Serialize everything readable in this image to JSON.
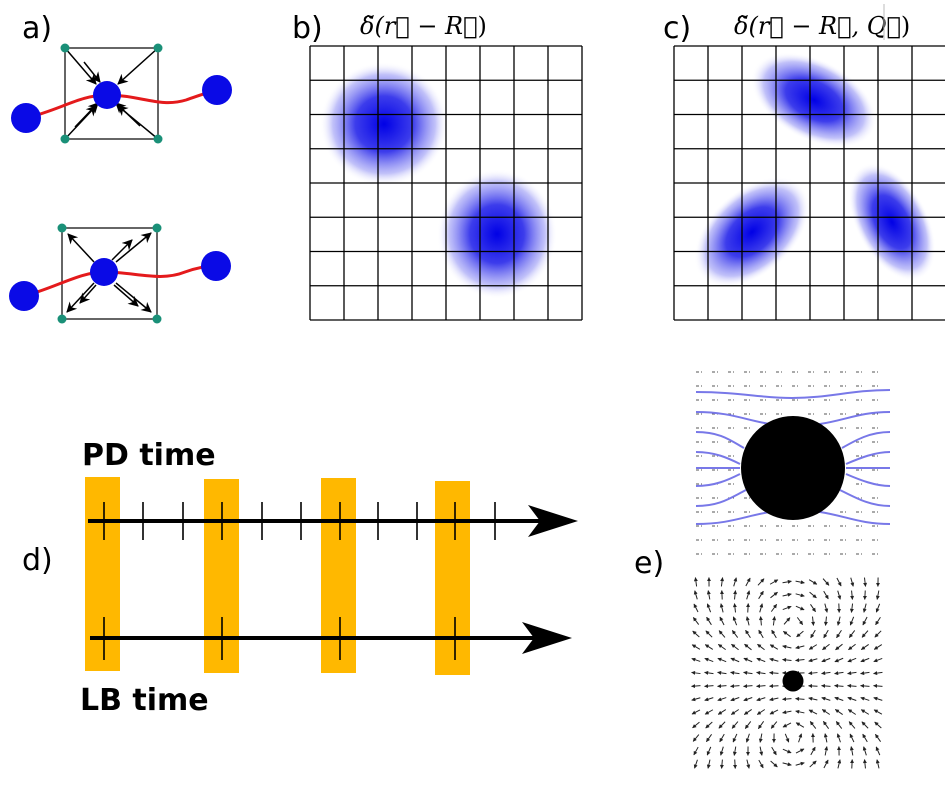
{
  "panels": {
    "a": {
      "label": "a)"
    },
    "b": {
      "label": "b)",
      "formula_main": "δ̃(r⃗ − R⃗",
      "formula_tail": ")"
    },
    "c": {
      "label": "c)",
      "formula_main": "δ̃(r⃗ − R⃗, Q⃗",
      "formula_tail": ")"
    },
    "d": {
      "label": "d)",
      "top_timeline": "PD time",
      "bottom_timeline": "LB time"
    },
    "e": {
      "label": "e)"
    }
  },
  "colors": {
    "particle": "#0a0ae6",
    "bond": "#e41a1c",
    "lattice_node": "#1a9078",
    "highlight": "#ffb800",
    "streamline": "#7878e8",
    "ink": "#000000"
  }
}
